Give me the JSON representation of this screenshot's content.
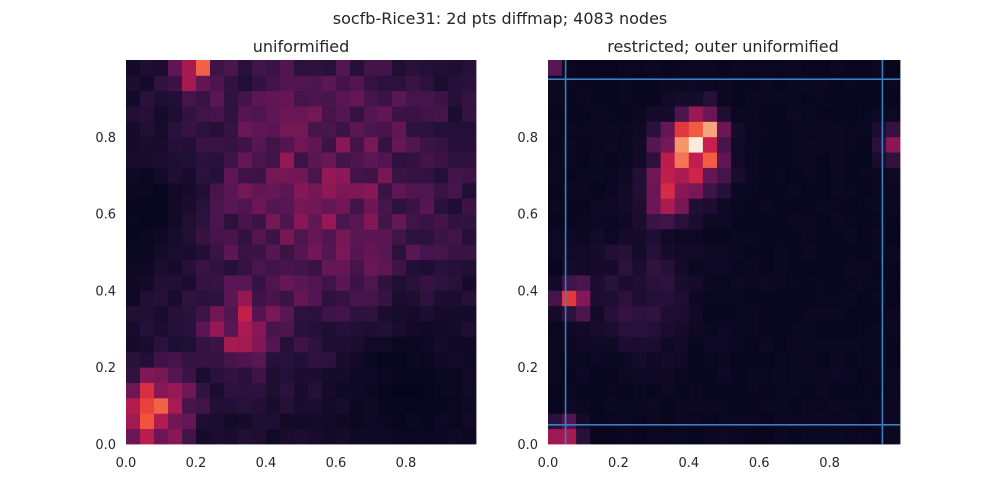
{
  "figure": {
    "suptitle": "socfb-Rice31: 2d pts diffmap; 4083 nodes"
  },
  "chart_data": [
    {
      "type": "heatmap",
      "title": "uniformified",
      "xlabel": "",
      "ylabel": "",
      "xlim": [
        0,
        1
      ],
      "ylim": [
        0,
        1
      ],
      "xticks": [
        "0.0",
        "0.2",
        "0.4",
        "0.6",
        "0.8"
      ],
      "yticks": [
        "0.0",
        "0.2",
        "0.4",
        "0.6",
        "0.8"
      ],
      "grid": false,
      "colormap": "rocket",
      "bins": [
        25,
        25
      ],
      "density_peaks": [
        {
          "x": 0.1,
          "y": 0.1,
          "sigma": 0.06,
          "weight": 0.75
        },
        {
          "x": 0.06,
          "y": 0.04,
          "sigma": 0.04,
          "weight": 0.35
        },
        {
          "x": 0.2,
          "y": 0.97,
          "sigma": 0.04,
          "weight": 0.55
        },
        {
          "x": 0.32,
          "y": 0.3,
          "sigma": 0.06,
          "weight": 0.4
        },
        {
          "x": 0.55,
          "y": 0.65,
          "sigma": 0.28,
          "weight": 0.32
        }
      ],
      "empty_regions": [
        {
          "x": 0.06,
          "y": 0.6,
          "sigma": 0.12
        },
        {
          "x": 0.8,
          "y": 0.15,
          "sigma": 0.15
        }
      ]
    },
    {
      "type": "heatmap",
      "title": "restricted; outer uniformified",
      "xlabel": "",
      "ylabel": "",
      "xlim": [
        0,
        1
      ],
      "ylim": [
        0,
        1
      ],
      "xticks": [
        "0.0",
        "0.2",
        "0.4",
        "0.6",
        "0.8"
      ],
      "yticks": [
        "0.0",
        "0.2",
        "0.4",
        "0.6",
        "0.8"
      ],
      "grid": false,
      "colormap": "rocket",
      "bins": [
        25,
        25
      ],
      "boundary_lines": {
        "vertical": [
          0.05,
          0.95
        ],
        "horizontal": [
          0.05,
          0.95
        ]
      },
      "line_color": "#3a7fc1",
      "density_peaks": [
        {
          "x": 0.4,
          "y": 0.74,
          "sigma": 0.06,
          "weight": 1.0
        },
        {
          "x": 0.44,
          "y": 0.82,
          "sigma": 0.04,
          "weight": 0.5
        },
        {
          "x": 0.33,
          "y": 0.64,
          "sigma": 0.04,
          "weight": 0.45
        },
        {
          "x": 0.07,
          "y": 0.38,
          "sigma": 0.03,
          "weight": 0.6
        },
        {
          "x": 0.05,
          "y": 0.02,
          "sigma": 0.025,
          "weight": 0.8
        },
        {
          "x": 0.01,
          "y": 0.99,
          "sigma": 0.015,
          "weight": 0.7
        },
        {
          "x": 0.98,
          "y": 0.78,
          "sigma": 0.03,
          "weight": 0.35
        },
        {
          "x": 0.25,
          "y": 0.4,
          "sigma": 0.1,
          "weight": 0.15
        }
      ]
    }
  ]
}
